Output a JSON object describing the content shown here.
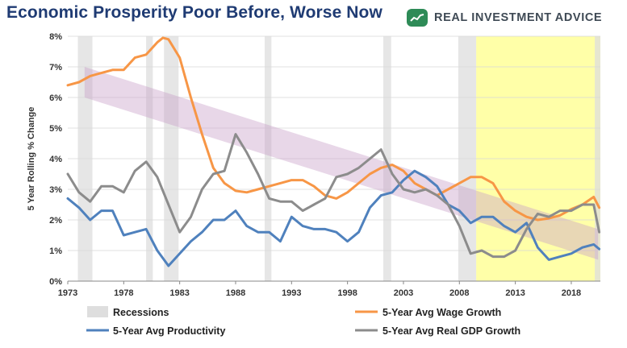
{
  "title": "Economic Prosperity Poor Before, Worse Now",
  "brand": {
    "name": "REAL INVESTMENT ADVICE",
    "logo_icon": "chart-logo-icon",
    "logo_color": "#2e8b57"
  },
  "chart_data": {
    "type": "line",
    "ylabel": "5 Year Rolling % Change",
    "xlabel": "",
    "xlim": [
      1973,
      2020.6
    ],
    "ylim": [
      0,
      8
    ],
    "x_ticks": [
      "1973",
      "1978",
      "1983",
      "1988",
      "1993",
      "1998",
      "2003",
      "2008",
      "2013",
      "2018"
    ],
    "y_ticks": [
      "0%",
      "1%",
      "2%",
      "3%",
      "4%",
      "5%",
      "6%",
      "7%",
      "8%"
    ],
    "grid": true,
    "legend_position": "bottom",
    "recessions": [
      [
        1973.9,
        1975.2
      ],
      [
        1980.0,
        1980.6
      ],
      [
        1981.6,
        1982.9
      ],
      [
        1990.6,
        1991.2
      ],
      [
        2001.2,
        2001.9
      ],
      [
        2007.9,
        2009.5
      ],
      [
        2020.1,
        2020.6
      ]
    ],
    "highlight_region": {
      "start": 2009.5,
      "end": 2020.6,
      "color": "#ffffa8"
    },
    "trend_band": {
      "start": [
        1974.5,
        6.5
      ],
      "end": [
        2020.4,
        1.2
      ],
      "half_width": 0.5,
      "color": "#c8a0c8"
    },
    "legend": {
      "recessions": "Recessions",
      "wage": "5-Year Avg Wage Growth",
      "productivity": "5-Year Avg Productivity",
      "gdp": "5-Year Avg Real GDP Growth"
    },
    "series": [
      {
        "name": "5-Year Avg Wage Growth",
        "color": "#f79646",
        "x": [
          1973,
          1974,
          1975,
          1976,
          1977,
          1978,
          1979,
          1980,
          1981,
          1981.5,
          1982,
          1983,
          1984,
          1985,
          1986,
          1987,
          1988,
          1989,
          1990,
          1991,
          1992,
          1993,
          1994,
          1995,
          1996,
          1997,
          1998,
          1999,
          2000,
          2001,
          2002,
          2003,
          2004,
          2005,
          2006,
          2007,
          2008,
          2009,
          2010,
          2011,
          2012,
          2013,
          2014,
          2015,
          2016,
          2017,
          2018,
          2019,
          2020,
          2020.5
        ],
        "values": [
          6.4,
          6.5,
          6.7,
          6.8,
          6.9,
          6.9,
          7.3,
          7.4,
          7.8,
          7.95,
          7.9,
          7.3,
          6.0,
          4.8,
          3.7,
          3.2,
          2.95,
          2.9,
          3.0,
          3.1,
          3.2,
          3.3,
          3.3,
          3.1,
          2.8,
          2.7,
          2.9,
          3.2,
          3.5,
          3.7,
          3.8,
          3.6,
          3.2,
          3.0,
          2.8,
          3.0,
          3.2,
          3.4,
          3.4,
          3.2,
          2.6,
          2.3,
          2.1,
          2.0,
          2.05,
          2.15,
          2.35,
          2.5,
          2.75,
          2.4
        ]
      },
      {
        "name": "5-Year Avg Productivity",
        "color": "#4f81bd",
        "x": [
          1973,
          1974,
          1975,
          1976,
          1977,
          1978,
          1979,
          1980,
          1981,
          1982,
          1983,
          1984,
          1985,
          1986,
          1987,
          1988,
          1989,
          1990,
          1991,
          1992,
          1993,
          1994,
          1995,
          1996,
          1997,
          1998,
          1999,
          2000,
          2001,
          2002,
          2003,
          2004,
          2005,
          2006,
          2007,
          2008,
          2009,
          2010,
          2011,
          2012,
          2013,
          2014,
          2015,
          2016,
          2017,
          2018,
          2019,
          2020,
          2020.5
        ],
        "values": [
          2.7,
          2.4,
          2.0,
          2.3,
          2.3,
          1.5,
          1.6,
          1.7,
          1.0,
          0.5,
          0.9,
          1.3,
          1.6,
          2.0,
          2.0,
          2.3,
          1.8,
          1.6,
          1.6,
          1.3,
          2.1,
          1.8,
          1.7,
          1.7,
          1.6,
          1.3,
          1.6,
          2.4,
          2.8,
          2.9,
          3.3,
          3.6,
          3.4,
          3.1,
          2.5,
          2.3,
          1.9,
          2.1,
          2.1,
          1.8,
          1.6,
          1.9,
          1.1,
          0.7,
          0.8,
          0.9,
          1.1,
          1.2,
          1.05
        ]
      },
      {
        "name": "5-Year Avg Real GDP Growth",
        "color": "#8c8c8c",
        "x": [
          1973,
          1974,
          1975,
          1976,
          1977,
          1978,
          1979,
          1980,
          1981,
          1982,
          1983,
          1984,
          1985,
          1986,
          1987,
          1988,
          1989,
          1990,
          1991,
          1992,
          1993,
          1994,
          1995,
          1996,
          1997,
          1998,
          1999,
          2000,
          2001,
          2002,
          2003,
          2004,
          2005,
          2006,
          2007,
          2008,
          2009,
          2010,
          2011,
          2012,
          2013,
          2014,
          2015,
          2016,
          2017,
          2018,
          2019,
          2020,
          2020.5
        ],
        "values": [
          3.5,
          2.9,
          2.6,
          3.1,
          3.1,
          2.9,
          3.6,
          3.9,
          3.4,
          2.5,
          1.6,
          2.1,
          3.0,
          3.5,
          3.6,
          4.8,
          4.2,
          3.5,
          2.7,
          2.6,
          2.6,
          2.3,
          2.5,
          2.7,
          3.4,
          3.5,
          3.7,
          4.0,
          4.3,
          3.5,
          3.0,
          2.9,
          3.0,
          2.8,
          2.5,
          1.8,
          0.9,
          1.0,
          0.8,
          0.8,
          1.0,
          1.7,
          2.2,
          2.1,
          2.3,
          2.3,
          2.5,
          2.5,
          1.6
        ]
      }
    ]
  }
}
